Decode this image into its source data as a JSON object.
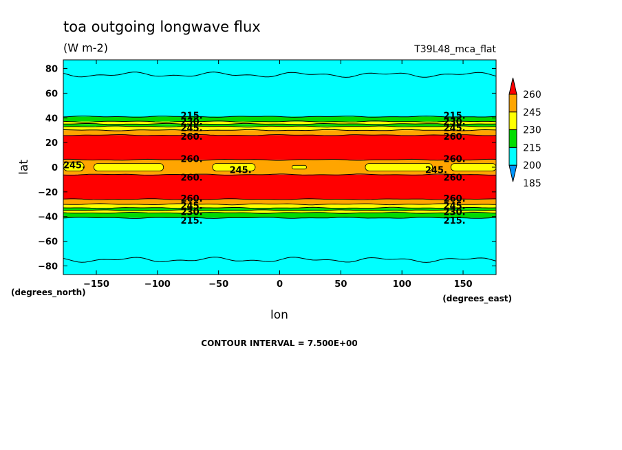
{
  "chart_data": {
    "type": "contour",
    "title": "toa outgoing longwave flux",
    "units": "(W m-2)",
    "case_label": "T39L48_mca_flat",
    "xlabel": "lon",
    "ylabel": "lat",
    "x_unit": "(degrees_east)",
    "y_unit": "(degrees_north)",
    "xlim": [
      -177,
      177
    ],
    "ylim": [
      -87,
      87
    ],
    "x_ticks": [
      -150,
      -100,
      -50,
      0,
      50,
      100,
      150
    ],
    "y_ticks": [
      -80,
      -60,
      -40,
      -20,
      0,
      20,
      40,
      60,
      80
    ],
    "footer": "CONTOUR INTERVAL = 7.500E+00",
    "legend_position": "right",
    "colorbar": {
      "labels": [
        "185",
        "200",
        "215",
        "230",
        "245",
        "260"
      ],
      "colors": [
        "#0096ff",
        "#00ffff",
        "#00dc00",
        "#ffff00",
        "#ffa500",
        "#ff0000"
      ]
    },
    "bands": [
      {
        "from": 41,
        "to": 87,
        "color": "#00ffff"
      },
      {
        "from": 37,
        "to": 41,
        "color": "#00dc00"
      },
      {
        "from": 35,
        "to": 37,
        "color": "#ffff00"
      },
      {
        "from": 33,
        "to": 35,
        "color": "#00dc00"
      },
      {
        "from": 30,
        "to": 33,
        "color": "#ffff00"
      },
      {
        "from": 26,
        "to": 30,
        "color": "#ffa500"
      },
      {
        "from": 6,
        "to": 26,
        "color": "#ff0000"
      },
      {
        "from": -6,
        "to": 6,
        "color": "#ffa500"
      },
      {
        "from": -26,
        "to": -6,
        "color": "#ff0000"
      },
      {
        "from": -30,
        "to": -26,
        "color": "#ffa500"
      },
      {
        "from": -33,
        "to": -30,
        "color": "#ffff00"
      },
      {
        "from": -35,
        "to": -33,
        "color": "#00dc00"
      },
      {
        "from": -37,
        "to": -35,
        "color": "#ffff00"
      },
      {
        "from": -41,
        "to": -37,
        "color": "#00dc00"
      },
      {
        "from": -87,
        "to": -41,
        "color": "#00ffff"
      }
    ],
    "equatorial_patches": [
      {
        "x0": -177,
        "x1": -160,
        "y0": -3,
        "y1": 4
      },
      {
        "x0": -152,
        "x1": -95,
        "y0": -3,
        "y1": 3
      },
      {
        "x0": -55,
        "x1": -20,
        "y0": -3,
        "y1": 3
      },
      {
        "x0": 10,
        "x1": 22,
        "y0": -1.5,
        "y1": 1.5
      },
      {
        "x0": 70,
        "x1": 125,
        "y0": -3,
        "y1": 3
      },
      {
        "x0": 140,
        "x1": 177,
        "y0": -3,
        "y1": 3
      }
    ],
    "contour_levels_y": [
      75,
      41,
      37,
      35,
      33,
      30,
      26,
      6,
      -6,
      -26,
      -30,
      -33,
      -35,
      -37,
      -41,
      -75
    ],
    "contour_labels": [
      {
        "text": "215.",
        "lon": -72,
        "lat": 42
      },
      {
        "text": "230.",
        "lon": -72,
        "lat": 37
      },
      {
        "text": "245.",
        "lon": -72,
        "lat": 32
      },
      {
        "text": "260.",
        "lon": -72,
        "lat": 25
      },
      {
        "text": "260.",
        "lon": -72,
        "lat": 7
      },
      {
        "text": "260.",
        "lon": -72,
        "lat": -8
      },
      {
        "text": "260.",
        "lon": -72,
        "lat": -25
      },
      {
        "text": "245.",
        "lon": -72,
        "lat": -31
      },
      {
        "text": "230.",
        "lon": -72,
        "lat": -36
      },
      {
        "text": "215.",
        "lon": -72,
        "lat": -43
      },
      {
        "text": "215.",
        "lon": 143,
        "lat": 42
      },
      {
        "text": "230.",
        "lon": 143,
        "lat": 37
      },
      {
        "text": "245.",
        "lon": 143,
        "lat": 32
      },
      {
        "text": "260.",
        "lon": 143,
        "lat": 25
      },
      {
        "text": "260.",
        "lon": 143,
        "lat": 7
      },
      {
        "text": "260.",
        "lon": 143,
        "lat": -8
      },
      {
        "text": "260.",
        "lon": 143,
        "lat": -25
      },
      {
        "text": "245.",
        "lon": 143,
        "lat": -31
      },
      {
        "text": "230.",
        "lon": 143,
        "lat": -36
      },
      {
        "text": "215.",
        "lon": 143,
        "lat": -43
      },
      {
        "text": "245.",
        "lon": -168,
        "lat": 2
      },
      {
        "text": "245.",
        "lon": -32,
        "lat": -2
      },
      {
        "text": "245.",
        "lon": 128,
        "lat": -2
      }
    ]
  }
}
